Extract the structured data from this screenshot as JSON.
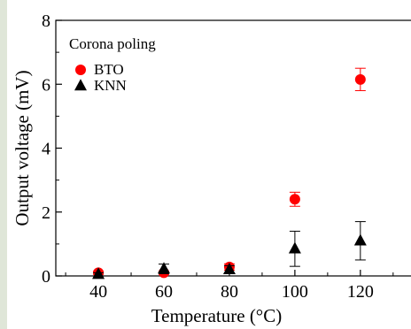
{
  "chart_data": {
    "type": "scatter",
    "title": "",
    "xlabel": "Temperature (°C)",
    "ylabel": "Output voltage (mV)",
    "legend_title": "Corona poling",
    "legend_position": "top-left",
    "xlim": [
      27,
      136
    ],
    "ylim": [
      0,
      8
    ],
    "x_ticks": [
      40,
      60,
      80,
      100,
      120
    ],
    "y_ticks": [
      0,
      2,
      4,
      6,
      8
    ],
    "grid": false,
    "series": [
      {
        "name": "BTO",
        "marker": "circle",
        "color": "#ff0000",
        "x": [
          40,
          60,
          80,
          100,
          120
        ],
        "y": [
          0.1,
          0.1,
          0.28,
          2.4,
          6.15
        ],
        "error": [
          0.05,
          0.05,
          0.1,
          0.22,
          0.35
        ]
      },
      {
        "name": "KNN",
        "marker": "triangle",
        "color": "#000000",
        "x": [
          40,
          60,
          80,
          100,
          120
        ],
        "y": [
          0.05,
          0.22,
          0.2,
          0.85,
          1.1
        ],
        "error": [
          0.05,
          0.15,
          0.12,
          0.55,
          0.6
        ]
      }
    ]
  }
}
